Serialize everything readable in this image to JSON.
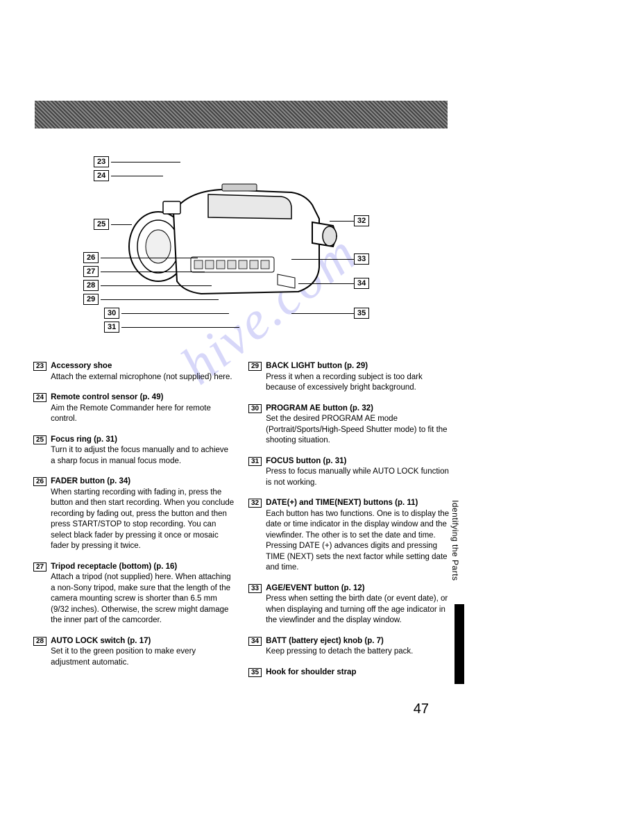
{
  "page_number": "47",
  "side_tab": "Identifying the Parts",
  "watermark": "hive.com",
  "callouts_left": [
    "23",
    "24",
    "25",
    "26",
    "27",
    "28",
    "29",
    "30",
    "31"
  ],
  "callouts_right": [
    "32",
    "33",
    "34",
    "35"
  ],
  "left_items": [
    {
      "num": "23",
      "title": "Accessory shoe",
      "desc": "Attach the external microphone (not supplied) here."
    },
    {
      "num": "24",
      "title": "Remote control sensor (p. 49)",
      "desc": "Aim the Remote Commander here for remote control."
    },
    {
      "num": "25",
      "title": "Focus ring (p. 31)",
      "desc": "Turn it to adjust the focus manually and to achieve a sharp focus in manual focus mode."
    },
    {
      "num": "26",
      "title": "FADER button (p. 34)",
      "desc": "When starting recording with fading in, press the button and then start recording. When you conclude recording by fading out, press the button and then press START/STOP to stop recording. You can select black fader by pressing it once or mosaic fader by pressing it twice."
    },
    {
      "num": "27",
      "title": "Tripod receptacle (bottom) (p. 16)",
      "desc": "Attach a tripod (not supplied) here. When attaching a non-Sony tripod, make sure that the length of the camera mounting screw is shorter than 6.5 mm (9/32 inches). Otherwise, the screw might damage the inner part of the camcorder."
    },
    {
      "num": "28",
      "title": "AUTO LOCK switch (p. 17)",
      "desc": "Set it to the green position to make every adjustment automatic."
    }
  ],
  "right_items": [
    {
      "num": "29",
      "title": "BACK LIGHT button (p. 29)",
      "desc": "Press it when a recording subject is too dark because of excessively bright background."
    },
    {
      "num": "30",
      "title": "PROGRAM AE button (p. 32)",
      "desc": "Set the desired PROGRAM AE mode (Portrait/Sports/High-Speed Shutter mode) to fit the shooting situation."
    },
    {
      "num": "31",
      "title": "FOCUS button (p. 31)",
      "desc": "Press to focus manually while AUTO LOCK function is not working."
    },
    {
      "num": "32",
      "title": "DATE(+) and TIME(NEXT) buttons (p. 11)",
      "desc": "Each button has two functions. One is to display the date or time indicator in the display window and the viewfinder. The other is to set the date and time. Pressing DATE (+) advances digits and pressing TIME (NEXT) sets the next factor while setting date and time."
    },
    {
      "num": "33",
      "title": "AGE/EVENT button (p. 12)",
      "desc": "Press when setting the birth date (or event date), or when displaying and turning off the age indicator in the viewfinder and the display window."
    },
    {
      "num": "34",
      "title": "BATT (battery eject) knob (p. 7)",
      "desc": "Keep pressing to detach the battery pack."
    },
    {
      "num": "35",
      "title": "Hook for shoulder strap",
      "desc": ""
    }
  ]
}
